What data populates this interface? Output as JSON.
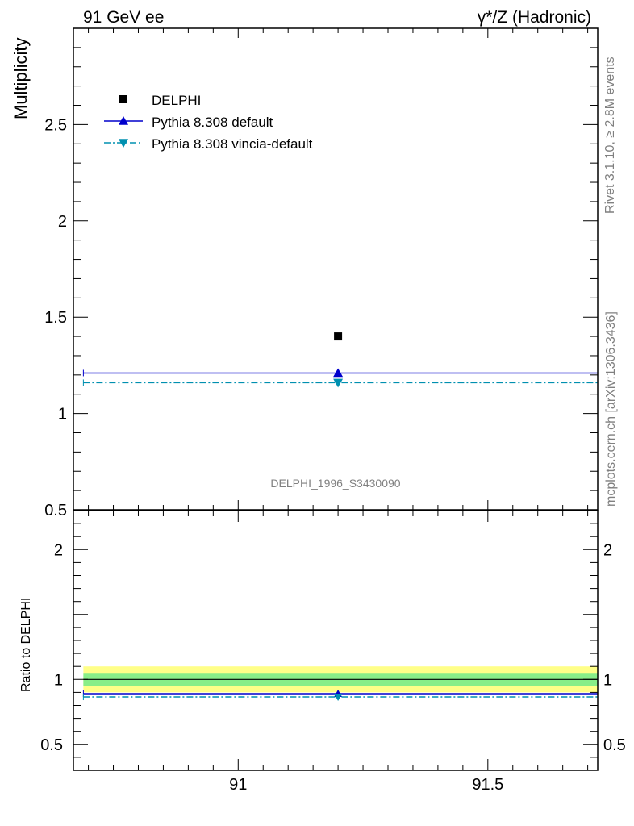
{
  "header": {
    "left": "91 GeV ee",
    "right": "γ*/Z (Hadronic)"
  },
  "side_labels": {
    "rivet": "Rivet 3.1.10, ≥ 2.8M events",
    "mcplots": "mcplots.cern.ch [arXiv:1306.3436]"
  },
  "watermark": "DELPHI_1996_S3430090",
  "colors": {
    "data": "#000000",
    "pythia_default": "#0000cc",
    "vincia_default": "#0090b0",
    "band_outer": "#ffff88",
    "band_inner": "#88ee88"
  },
  "chart_data": [
    {
      "type": "scatter",
      "title": "",
      "xlabel": "",
      "ylabel": "Multiplicity",
      "xlim": [
        90.67,
        91.72
      ],
      "ylim": [
        0.5,
        3.0
      ],
      "x_ticks": [
        91,
        91.5
      ],
      "y_ticks": [
        0.5,
        1,
        1.5,
        2,
        2.5
      ],
      "y_tick_labels": [
        "0.5",
        "1",
        "1.5",
        "2",
        "2.5"
      ],
      "legend_position": "top-left",
      "series": [
        {
          "name": "DELPHI",
          "style": "square-marker",
          "x": [
            91.2
          ],
          "y": [
            1.4
          ]
        },
        {
          "name": "Pythia 8.308 default",
          "style": "solid-line-up-triangle",
          "x": [
            91.2
          ],
          "y": [
            1.21
          ],
          "x_range": [
            90.69,
            91.72
          ]
        },
        {
          "name": "Pythia 8.308 vincia-default",
          "style": "dashdot-line-down-triangle",
          "x": [
            91.2
          ],
          "y": [
            1.16
          ],
          "x_range": [
            90.69,
            91.72
          ]
        }
      ]
    },
    {
      "type": "scatter",
      "title": "",
      "xlabel": "",
      "ylabel": "Ratio to DELPHI",
      "xlim": [
        90.67,
        91.72
      ],
      "ylim": [
        0.3,
        2.3
      ],
      "x_ticks": [
        91,
        91.5
      ],
      "x_tick_labels": [
        "91",
        "91.5"
      ],
      "y_ticks": [
        0.5,
        1,
        2
      ],
      "y_tick_labels": [
        "0.5",
        "1",
        "2"
      ],
      "bands": [
        {
          "name": "outer",
          "low": 0.9,
          "high": 1.1
        },
        {
          "name": "inner",
          "low": 0.95,
          "high": 1.05
        }
      ],
      "series": [
        {
          "name": "Pythia 8.308 default",
          "x": [
            91.2
          ],
          "y": [
            0.89
          ],
          "x_range": [
            90.69,
            91.72
          ]
        },
        {
          "name": "Pythia 8.308 vincia-default",
          "x": [
            91.2
          ],
          "y": [
            0.865
          ],
          "x_range": [
            90.69,
            91.72
          ]
        }
      ]
    }
  ]
}
